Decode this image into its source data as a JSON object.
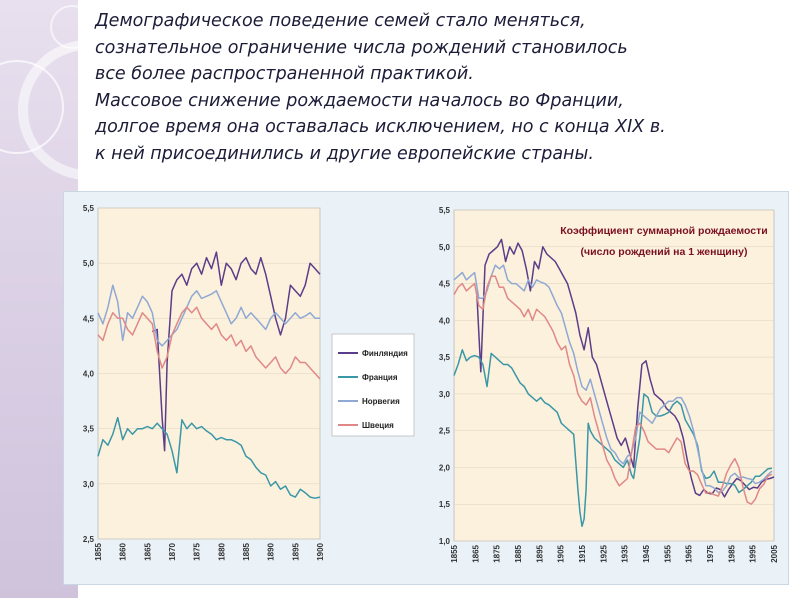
{
  "heading": {
    "lines": [
      "Демографическое поведение семей стало меняться,",
      "сознательное ограничение  числа рождений  становилось",
      "все более распространенной практикой.",
      "Массовое снижение рождаемости началось во Франции,",
      "долгое время она оставалась  исключением, но с конца XIX в.",
      "к ней присоединились и другие европейские страны."
    ]
  },
  "colors": {
    "finland": "#5c3d8a",
    "france": "#3a97a8",
    "norway": "#8fa8d4",
    "sweden": "#e08888"
  },
  "chart_data": [
    {
      "type": "line",
      "title": "",
      "xlabel": "",
      "ylabel": "",
      "ylim": [
        2.5,
        5.5
      ],
      "xlim": [
        1855,
        1900
      ],
      "yticks": [
        "2,5",
        "3,0",
        "3,5",
        "4,0",
        "4,5",
        "5,0",
        "5,5"
      ],
      "xticks": [
        "1855",
        "1860",
        "1865",
        "1870",
        "1875",
        "1880",
        "1885",
        "1890",
        "1895",
        "1900"
      ],
      "legend_position": "right",
      "legend": [
        "Финляндия",
        "Франция",
        "Норвегия",
        "Швеция"
      ],
      "series": [
        {
          "name": "Финляндия",
          "x": [
            1866,
            1867,
            1868,
            1868.5,
            1869,
            1870,
            1871,
            1872,
            1873,
            1874,
            1875,
            1876,
            1877,
            1878,
            1879,
            1880,
            1881,
            1882,
            1883,
            1884,
            1885,
            1886,
            1887,
            1888,
            1889,
            1890,
            1891,
            1892,
            1893,
            1894,
            1895,
            1896,
            1897,
            1898,
            1899,
            1900
          ],
          "y": [
            4.38,
            4.4,
            3.6,
            3.3,
            4.1,
            4.75,
            4.85,
            4.9,
            4.8,
            4.95,
            5.0,
            4.9,
            5.05,
            4.95,
            5.1,
            4.8,
            5.0,
            4.95,
            4.85,
            5.0,
            5.05,
            4.95,
            4.9,
            5.05,
            4.9,
            4.7,
            4.5,
            4.35,
            4.5,
            4.8,
            4.75,
            4.7,
            4.8,
            5.0,
            4.95,
            4.9
          ]
        },
        {
          "name": "Франция",
          "x": [
            1855,
            1856,
            1857,
            1858,
            1859,
            1860,
            1861,
            1862,
            1863,
            1864,
            1865,
            1866,
            1867,
            1868,
            1869,
            1870,
            1871,
            1872,
            1873,
            1874,
            1875,
            1876,
            1877,
            1878,
            1879,
            1880,
            1881,
            1882,
            1883,
            1884,
            1885,
            1886,
            1887,
            1888,
            1889,
            1890,
            1891,
            1892,
            1893,
            1894,
            1895,
            1896,
            1897,
            1898,
            1899,
            1900
          ],
          "y": [
            3.25,
            3.4,
            3.35,
            3.45,
            3.6,
            3.4,
            3.5,
            3.45,
            3.5,
            3.5,
            3.52,
            3.5,
            3.55,
            3.5,
            3.45,
            3.3,
            3.1,
            3.58,
            3.5,
            3.55,
            3.5,
            3.52,
            3.48,
            3.45,
            3.4,
            3.42,
            3.4,
            3.4,
            3.38,
            3.35,
            3.25,
            3.22,
            3.15,
            3.1,
            3.08,
            2.98,
            3.02,
            2.95,
            2.98,
            2.9,
            2.88,
            2.95,
            2.92,
            2.88,
            2.87,
            2.88
          ]
        },
        {
          "name": "Норвегия",
          "x": [
            1855,
            1856,
            1857,
            1858,
            1859,
            1860,
            1861,
            1862,
            1863,
            1864,
            1865,
            1866,
            1867,
            1868,
            1869,
            1870,
            1871,
            1872,
            1873,
            1874,
            1875,
            1876,
            1877,
            1878,
            1879,
            1880,
            1881,
            1882,
            1883,
            1884,
            1885,
            1886,
            1887,
            1888,
            1889,
            1890,
            1891,
            1892,
            1893,
            1894,
            1895,
            1896,
            1897,
            1898,
            1899,
            1900
          ],
          "y": [
            4.55,
            4.45,
            4.6,
            4.8,
            4.65,
            4.3,
            4.55,
            4.5,
            4.6,
            4.7,
            4.65,
            4.55,
            4.3,
            4.25,
            4.3,
            4.35,
            4.4,
            4.5,
            4.6,
            4.7,
            4.75,
            4.68,
            4.7,
            4.72,
            4.75,
            4.65,
            4.55,
            4.45,
            4.5,
            4.6,
            4.5,
            4.55,
            4.5,
            4.45,
            4.4,
            4.5,
            4.55,
            4.5,
            4.45,
            4.5,
            4.55,
            4.5,
            4.52,
            4.55,
            4.5,
            4.5
          ]
        },
        {
          "name": "Швеция",
          "x": [
            1855,
            1856,
            1857,
            1858,
            1859,
            1860,
            1861,
            1862,
            1863,
            1864,
            1865,
            1866,
            1867,
            1868,
            1869,
            1870,
            1871,
            1872,
            1873,
            1874,
            1875,
            1876,
            1877,
            1878,
            1879,
            1880,
            1881,
            1882,
            1883,
            1884,
            1885,
            1886,
            1887,
            1888,
            1889,
            1890,
            1891,
            1892,
            1893,
            1894,
            1895,
            1896,
            1897,
            1898,
            1899,
            1900
          ],
          "y": [
            4.35,
            4.3,
            4.45,
            4.55,
            4.5,
            4.5,
            4.4,
            4.35,
            4.45,
            4.55,
            4.5,
            4.45,
            4.2,
            4.05,
            4.15,
            4.35,
            4.45,
            4.55,
            4.6,
            4.55,
            4.6,
            4.5,
            4.45,
            4.4,
            4.45,
            4.35,
            4.3,
            4.35,
            4.25,
            4.3,
            4.2,
            4.25,
            4.15,
            4.1,
            4.05,
            4.1,
            4.15,
            4.05,
            4.0,
            4.05,
            4.15,
            4.1,
            4.1,
            4.05,
            4.0,
            3.95
          ]
        }
      ]
    },
    {
      "type": "line",
      "title": "Коэффициент суммарной рождаемости",
      "subtitle": "(число рождений на 1 женщину)",
      "xlabel": "",
      "ylabel": "",
      "ylim": [
        1.0,
        5.5
      ],
      "xlim": [
        1855,
        2010
      ],
      "yticks": [
        "1,0",
        "1,5",
        "2,0",
        "2,5",
        "3,0",
        "3,5",
        "4,0",
        "4,5",
        "5,0",
        "5,5"
      ],
      "xticks": [
        "1855",
        "1865",
        "1875",
        "1885",
        "1895",
        "1905",
        "1915",
        "1925",
        "1935",
        "1945",
        "1955",
        "1965",
        "1975",
        "1985",
        "1995",
        "2005"
      ],
      "series": [
        {
          "name": "Финляндия",
          "x": [
            1866,
            1868,
            1870,
            1872,
            1874,
            1876,
            1878,
            1880,
            1882,
            1884,
            1886,
            1888,
            1890,
            1892,
            1894,
            1896,
            1898,
            1900,
            1904,
            1906,
            1908,
            1910,
            1912,
            1914,
            1916,
            1918,
            1920,
            1922,
            1924,
            1926,
            1928,
            1930,
            1932,
            1934,
            1936,
            1938,
            1940,
            1942,
            1944,
            1946,
            1948,
            1950,
            1952,
            1954,
            1956,
            1958,
            1960,
            1962,
            1964,
            1966,
            1968,
            1970,
            1972,
            1974,
            1976,
            1978,
            1980,
            1982,
            1984,
            1986,
            1988,
            1990,
            1992,
            1994,
            1996,
            1998,
            2000,
            2002,
            2004,
            2006,
            2008,
            2010
          ],
          "y": [
            4.4,
            3.3,
            4.75,
            4.9,
            4.95,
            5.0,
            5.1,
            4.8,
            5.0,
            4.9,
            5.05,
            4.95,
            4.7,
            4.4,
            4.8,
            4.7,
            5.0,
            4.9,
            4.8,
            4.7,
            4.6,
            4.5,
            4.3,
            4.1,
            3.8,
            3.6,
            3.9,
            3.5,
            3.4,
            3.2,
            3.0,
            2.8,
            2.6,
            2.4,
            2.3,
            2.4,
            2.2,
            2.0,
            2.8,
            3.4,
            3.45,
            3.2,
            3.0,
            2.95,
            2.9,
            2.8,
            2.75,
            2.7,
            2.6,
            2.4,
            2.1,
            1.85,
            1.65,
            1.62,
            1.7,
            1.65,
            1.64,
            1.72,
            1.7,
            1.6,
            1.7,
            1.78,
            1.85,
            1.82,
            1.76,
            1.7,
            1.73,
            1.72,
            1.8,
            1.84,
            1.85,
            1.87
          ]
        },
        {
          "name": "Франция",
          "x": [
            1855,
            1857,
            1859,
            1861,
            1863,
            1865,
            1867,
            1869,
            1871,
            1873,
            1875,
            1877,
            1879,
            1881,
            1883,
            1885,
            1887,
            1889,
            1891,
            1893,
            1895,
            1897,
            1899,
            1901,
            1905,
            1907,
            1909,
            1911,
            1913,
            1915,
            1916,
            1917,
            1918,
            1919,
            1920,
            1921,
            1923,
            1925,
            1927,
            1929,
            1931,
            1933,
            1935,
            1937,
            1939,
            1941,
            1942,
            1943,
            1945,
            1947,
            1949,
            1951,
            1953,
            1955,
            1957,
            1959,
            1961,
            1963,
            1965,
            1967,
            1969,
            1971,
            1973,
            1975,
            1977,
            1979,
            1981,
            1983,
            1985,
            1987,
            1989,
            1991,
            1993,
            1995,
            1997,
            1999,
            2001,
            2003,
            2005,
            2007,
            2009
          ],
          "y": [
            3.25,
            3.4,
            3.6,
            3.45,
            3.5,
            3.52,
            3.5,
            3.4,
            3.1,
            3.55,
            3.5,
            3.45,
            3.4,
            3.4,
            3.35,
            3.25,
            3.15,
            3.1,
            3.0,
            2.95,
            2.9,
            2.95,
            2.88,
            2.85,
            2.75,
            2.6,
            2.55,
            2.5,
            2.45,
            1.7,
            1.4,
            1.2,
            1.3,
            1.7,
            2.6,
            2.5,
            2.4,
            2.35,
            2.3,
            2.25,
            2.2,
            2.1,
            2.05,
            2.0,
            2.1,
            1.9,
            1.85,
            2.05,
            2.4,
            3.0,
            2.95,
            2.75,
            2.7,
            2.7,
            2.72,
            2.75,
            2.85,
            2.9,
            2.85,
            2.65,
            2.55,
            2.45,
            2.3,
            1.95,
            1.85,
            1.87,
            1.95,
            1.8,
            1.8,
            1.78,
            1.78,
            1.76,
            1.66,
            1.7,
            1.75,
            1.8,
            1.88,
            1.88,
            1.93,
            1.98,
            1.99
          ]
        },
        {
          "name": "Норвегия",
          "x": [
            1855,
            1857,
            1859,
            1861,
            1863,
            1865,
            1867,
            1869,
            1871,
            1873,
            1875,
            1877,
            1879,
            1881,
            1883,
            1885,
            1887,
            1889,
            1891,
            1893,
            1895,
            1897,
            1899,
            1901,
            1905,
            1907,
            1909,
            1911,
            1913,
            1915,
            1917,
            1919,
            1921,
            1923,
            1925,
            1927,
            1929,
            1931,
            1933,
            1935,
            1937,
            1939,
            1941,
            1943,
            1945,
            1947,
            1949,
            1951,
            1953,
            1955,
            1957,
            1959,
            1961,
            1963,
            1965,
            1967,
            1969,
            1971,
            1973,
            1975,
            1977,
            1979,
            1981,
            1983,
            1985,
            1987,
            1989,
            1991,
            1993,
            1995,
            1997,
            1999,
            2001,
            2003,
            2005,
            2007,
            2009
          ],
          "y": [
            4.55,
            4.6,
            4.65,
            4.55,
            4.6,
            4.65,
            4.3,
            4.3,
            4.4,
            4.6,
            4.75,
            4.7,
            4.75,
            4.55,
            4.5,
            4.5,
            4.45,
            4.4,
            4.55,
            4.45,
            4.55,
            4.52,
            4.5,
            4.45,
            4.2,
            4.1,
            3.9,
            3.7,
            3.55,
            3.3,
            3.1,
            3.05,
            3.2,
            3.0,
            2.8,
            2.6,
            2.4,
            2.25,
            2.2,
            2.1,
            2.05,
            2.15,
            2.2,
            2.4,
            2.75,
            2.7,
            2.65,
            2.6,
            2.7,
            2.8,
            2.85,
            2.9,
            2.9,
            2.95,
            2.95,
            2.85,
            2.7,
            2.5,
            2.25,
            1.98,
            1.75,
            1.75,
            1.72,
            1.66,
            1.68,
            1.75,
            1.88,
            1.92,
            1.86,
            1.87,
            1.85,
            1.84,
            1.78,
            1.8,
            1.84,
            1.9,
            1.95
          ]
        },
        {
          "name": "Швеция",
          "x": [
            1855,
            1857,
            1859,
            1861,
            1863,
            1865,
            1867,
            1869,
            1871,
            1873,
            1875,
            1877,
            1879,
            1881,
            1883,
            1885,
            1887,
            1889,
            1891,
            1893,
            1895,
            1897,
            1899,
            1901,
            1903,
            1905,
            1907,
            1909,
            1911,
            1913,
            1915,
            1917,
            1919,
            1921,
            1923,
            1925,
            1927,
            1929,
            1931,
            1933,
            1935,
            1937,
            1939,
            1941,
            1943,
            1945,
            1947,
            1949,
            1951,
            1953,
            1955,
            1957,
            1959,
            1961,
            1963,
            1965,
            1967,
            1969,
            1971,
            1973,
            1975,
            1977,
            1979,
            1981,
            1983,
            1985,
            1987,
            1989,
            1991,
            1993,
            1995,
            1997,
            1999,
            2001,
            2003,
            2005,
            2007,
            2009
          ],
          "y": [
            4.35,
            4.45,
            4.5,
            4.4,
            4.45,
            4.5,
            4.2,
            4.15,
            4.45,
            4.6,
            4.6,
            4.45,
            4.45,
            4.3,
            4.25,
            4.2,
            4.15,
            4.05,
            4.15,
            4.0,
            4.15,
            4.1,
            4.05,
            3.95,
            3.85,
            3.7,
            3.6,
            3.65,
            3.4,
            3.25,
            3.0,
            2.9,
            2.85,
            2.95,
            2.7,
            2.5,
            2.3,
            2.1,
            2.0,
            1.85,
            1.75,
            1.8,
            1.85,
            2.2,
            2.55,
            2.6,
            2.5,
            2.35,
            2.3,
            2.25,
            2.25,
            2.25,
            2.2,
            2.3,
            2.4,
            2.35,
            2.05,
            1.95,
            1.95,
            1.9,
            1.77,
            1.65,
            1.66,
            1.63,
            1.61,
            1.74,
            1.92,
            2.03,
            2.12,
            2.0,
            1.73,
            1.53,
            1.5,
            1.57,
            1.71,
            1.77,
            1.88,
            1.91
          ]
        }
      ]
    }
  ]
}
